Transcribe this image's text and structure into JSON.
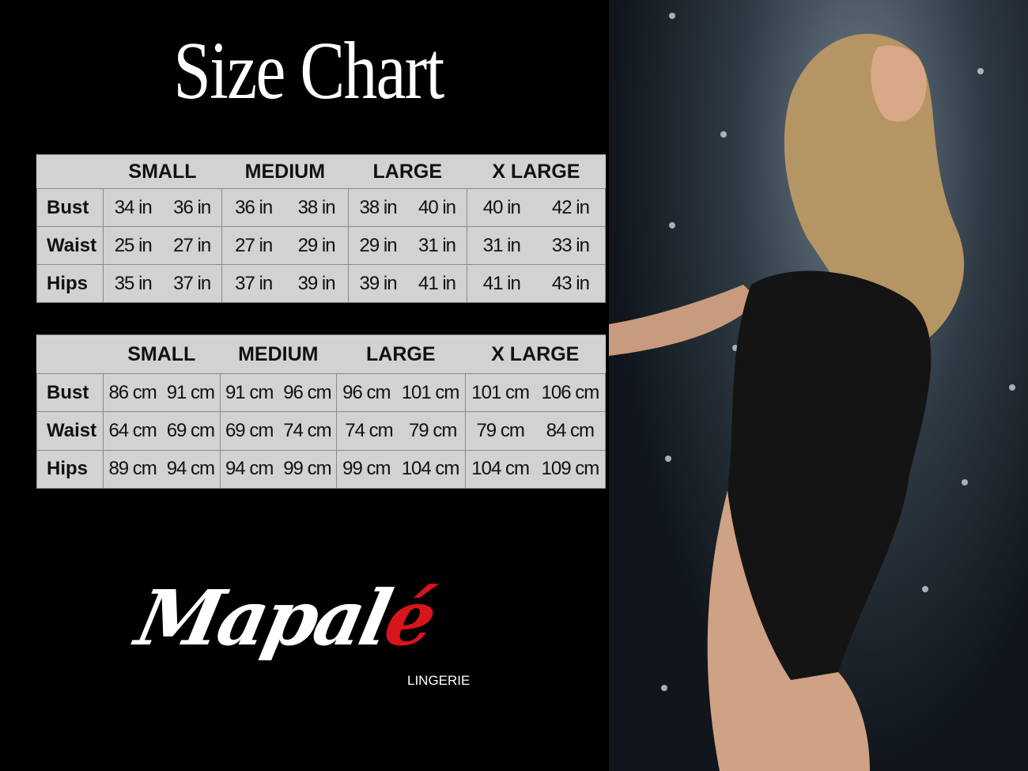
{
  "title": "Size Chart",
  "tables": [
    {
      "unit": "in",
      "sizes": [
        "SMALL",
        "MEDIUM",
        "LARGE",
        "X LARGE"
      ],
      "rows": [
        {
          "label": "Bust",
          "values": [
            "34 in",
            "36 in",
            "36 in",
            "38 in",
            "38 in",
            "40 in",
            "40 in",
            "42 in"
          ]
        },
        {
          "label": "Waist",
          "values": [
            "25 in",
            "27 in",
            "27 in",
            "29 in",
            "29 in",
            "31 in",
            "31 in",
            "33 in"
          ]
        },
        {
          "label": "Hips",
          "values": [
            "35 in",
            "37 in",
            "37 in",
            "39 in",
            "39 in",
            "41 in",
            "41 in",
            "43 in"
          ]
        }
      ]
    },
    {
      "unit": "cm",
      "sizes": [
        "SMALL",
        "MEDIUM",
        "LARGE",
        "X LARGE"
      ],
      "rows": [
        {
          "label": "Bust",
          "values": [
            "86 cm",
            "91 cm",
            "91 cm",
            "96 cm",
            "96 cm",
            "101 cm",
            "101 cm",
            "106 cm"
          ]
        },
        {
          "label": "Waist",
          "values": [
            "64 cm",
            "69 cm",
            "69 cm",
            "74 cm",
            "74 cm",
            "79  cm",
            "79 cm",
            "84 cm"
          ]
        },
        {
          "label": "Hips",
          "values": [
            "89 cm",
            "94 cm",
            "94 cm",
            "99 cm",
            "99 cm",
            "104 cm",
            "104 cm",
            "109 cm"
          ]
        }
      ]
    }
  ],
  "brand": {
    "name_main": "Mapal",
    "name_accent": "é",
    "subtitle": "LINGERIE",
    "accent_color": "#d8141c"
  },
  "colors": {
    "table_bg": "#d2d2d2",
    "background": "#000000"
  }
}
